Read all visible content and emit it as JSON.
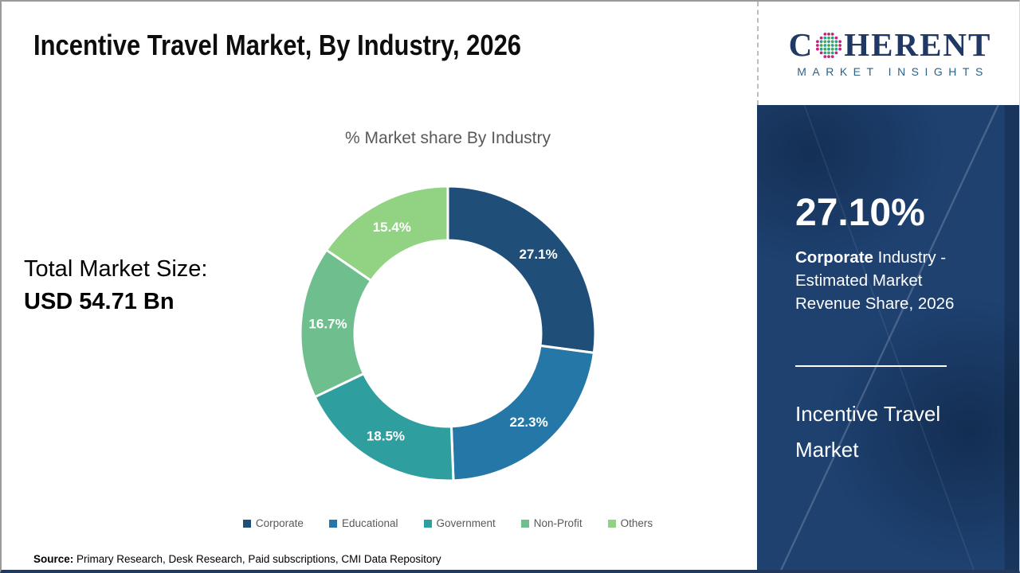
{
  "header": {
    "title": "Incentive Travel Market, By Industry, 2026"
  },
  "logo": {
    "name": "Coherent Market Insights",
    "line1_pre": "C",
    "line1_post": "HERENT",
    "line2": "MARKET INSIGHTS"
  },
  "chart_data": {
    "type": "pie",
    "subtype": "donut",
    "title": "% Market share By Industry",
    "categories": [
      "Corporate",
      "Educational",
      "Government",
      "Non-Profit",
      "Others"
    ],
    "values": [
      27.1,
      22.3,
      18.5,
      16.7,
      15.4
    ],
    "labels": [
      "27.1%",
      "22.3%",
      "18.5%",
      "16.7%",
      "15.4%"
    ],
    "colors": [
      "#1f4e79",
      "#2577a7",
      "#2f9e9e",
      "#6ebe8e",
      "#92d283"
    ],
    "start_angle_deg": 0,
    "direction": "clockwise",
    "legend_position": "bottom"
  },
  "market_size": {
    "label": "Total Market Size:",
    "value": "USD 54.71 Bn"
  },
  "sidebar": {
    "highlight_value": "27.10%",
    "highlight_desc_bold": "Corporate",
    "highlight_desc_rest": " Industry - Estimated Market Revenue Share, 2026",
    "market_name": "Incentive Travel Market"
  },
  "footer": {
    "source_label": "Source:",
    "source_text": " Primary Research, Desk Research, Paid subscriptions, CMI Data Repository"
  },
  "colors": {
    "brand_navy": "#1f3864",
    "sidebar_bg": "#1e4170",
    "title_text": "#0d0d0d",
    "muted_text": "#595959"
  }
}
